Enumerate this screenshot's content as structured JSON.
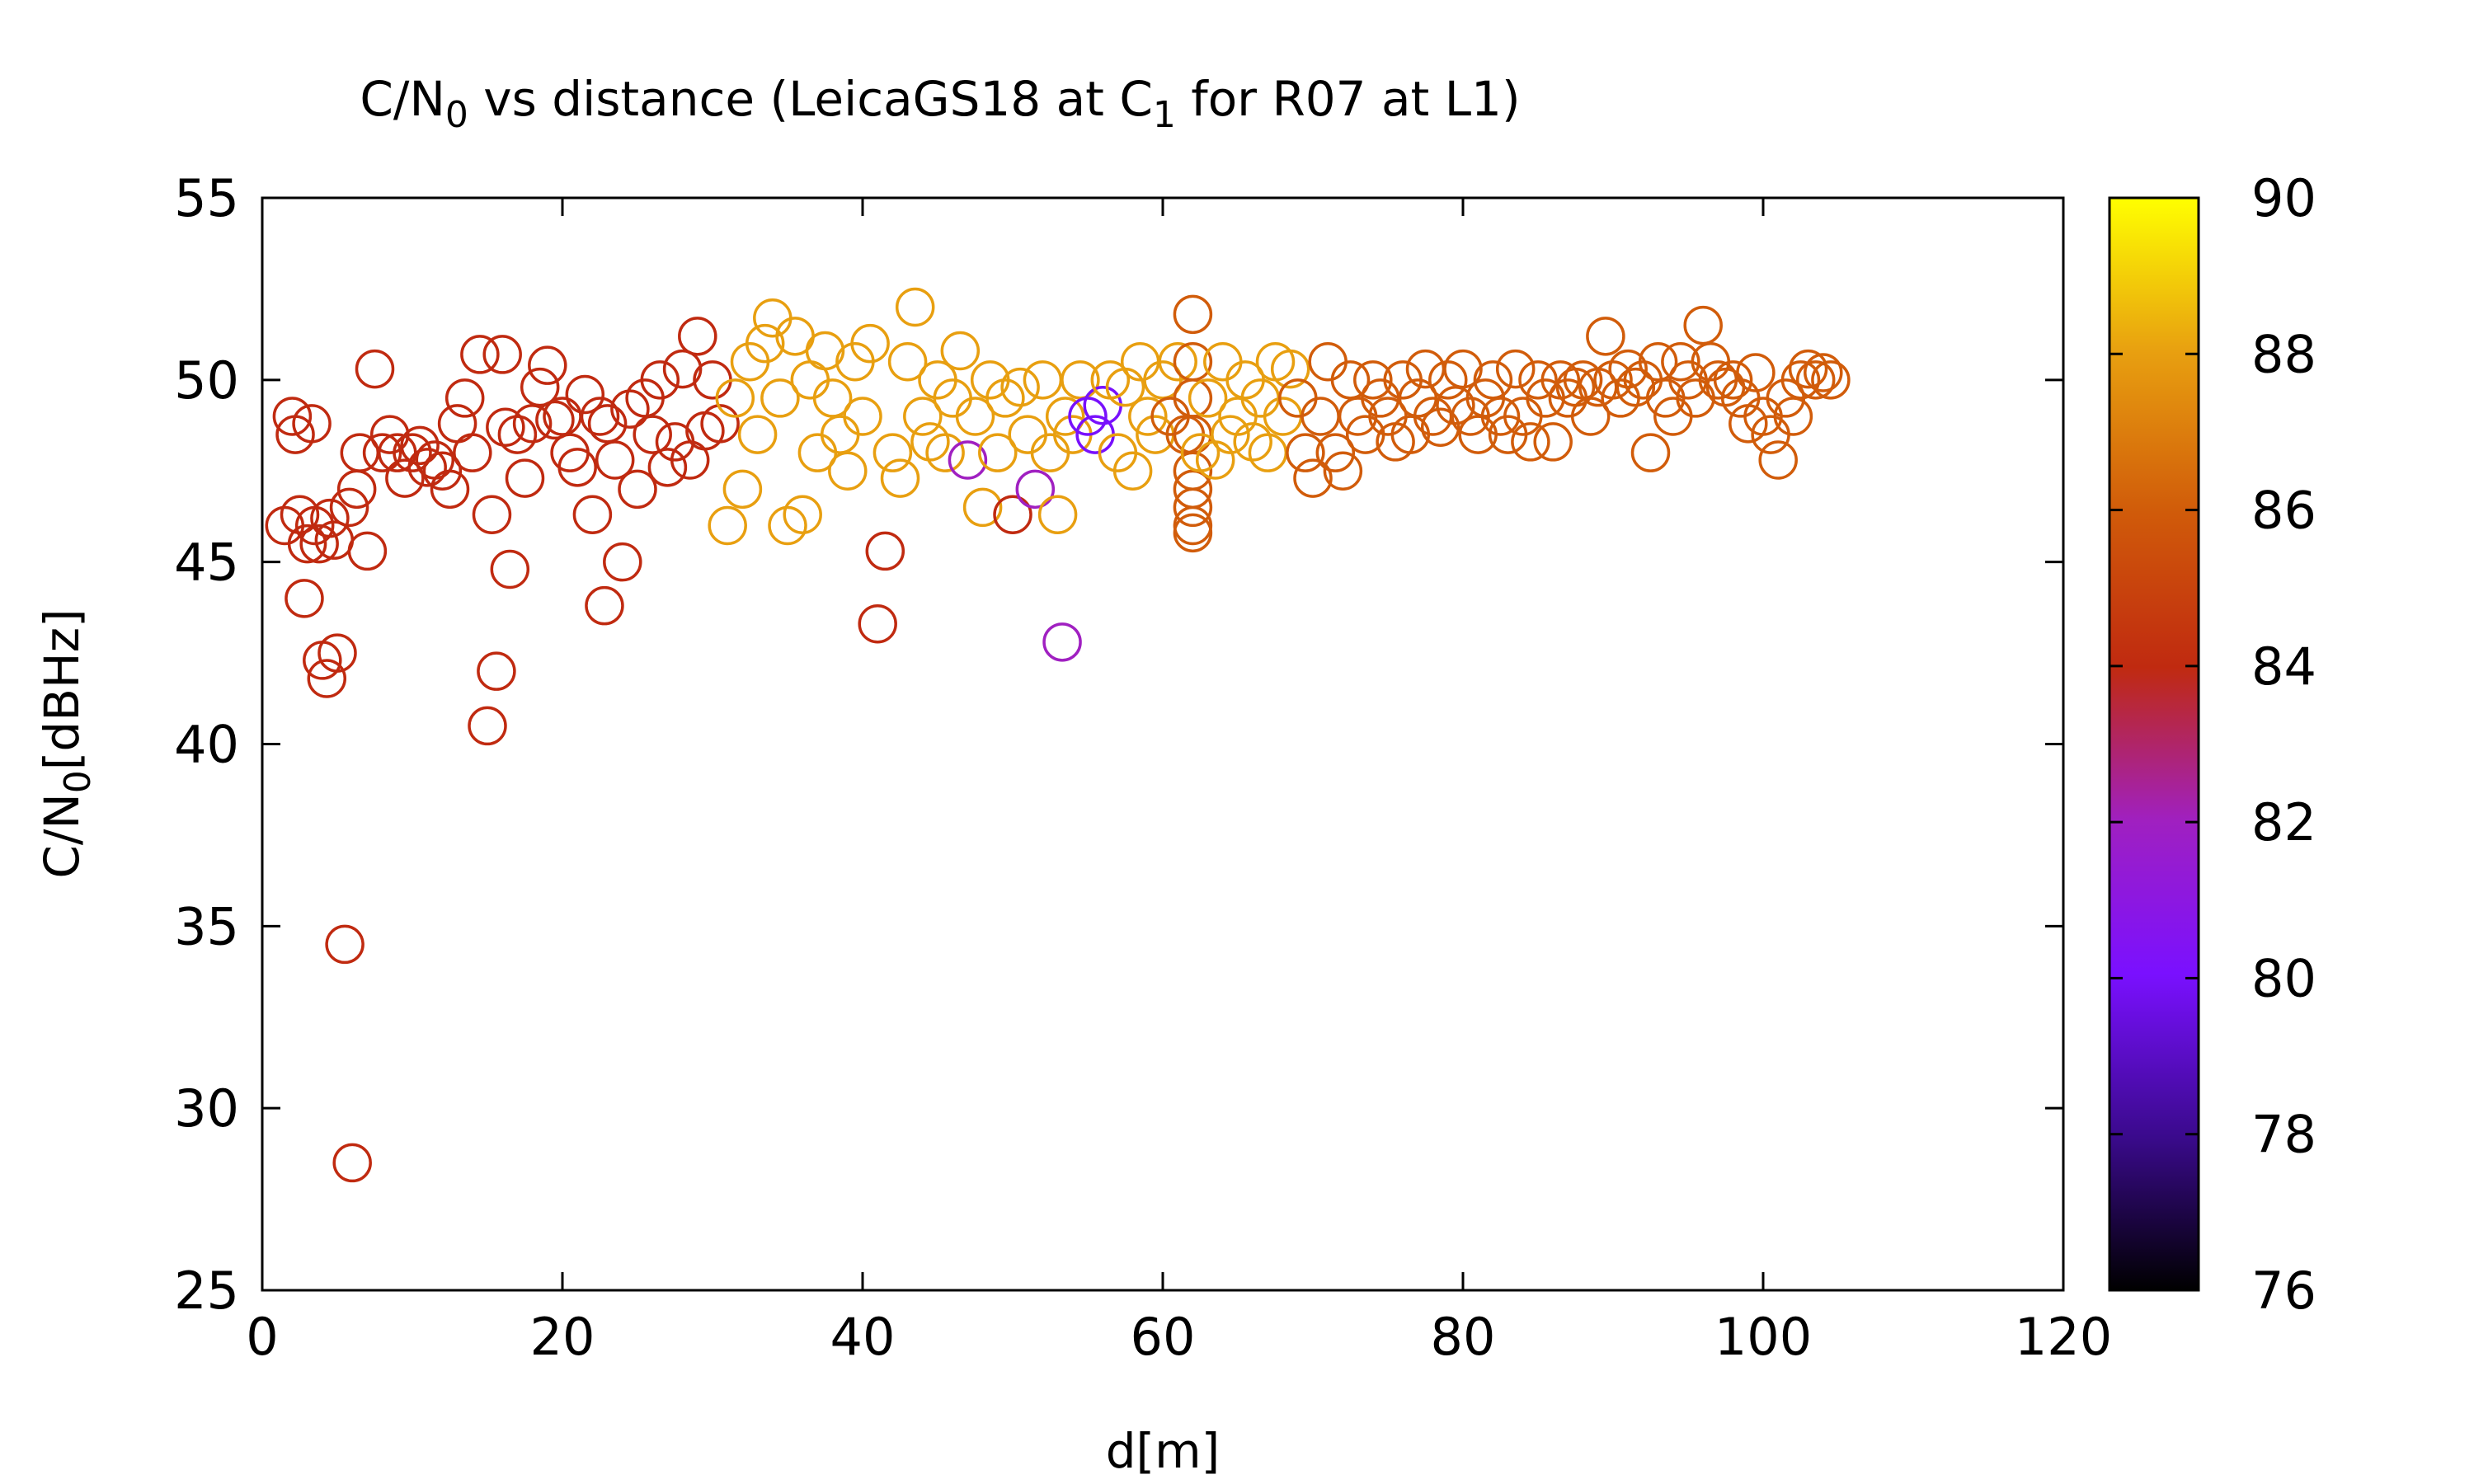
{
  "chart_data": {
    "type": "scatter",
    "title": {
      "main": "C/N",
      "sub0": "0",
      "mid": " vs distance (LeicaGS18 at C",
      "sub1": "1",
      "end": " for R07 at L1)"
    },
    "xlabel": "d[m]",
    "ylabel": {
      "main": "C/N",
      "sub": "0",
      "end": "[dBHz]"
    },
    "xlim": [
      0,
      120
    ],
    "ylim": [
      25,
      55
    ],
    "xticks": [
      "0",
      "20",
      "40",
      "60",
      "80",
      "100",
      "120"
    ],
    "yticks": [
      "25",
      "30",
      "35",
      "40",
      "45",
      "50",
      "55"
    ],
    "colorbar": {
      "range": [
        76,
        90
      ],
      "ticks": [
        "76",
        "78",
        "80",
        "82",
        "84",
        "86",
        "88",
        "90"
      ]
    },
    "points": [
      [
        1.5,
        46.0,
        84
      ],
      [
        2.0,
        49.0,
        84
      ],
      [
        2.2,
        48.5,
        84
      ],
      [
        2.5,
        46.3,
        84
      ],
      [
        2.8,
        44.0,
        84
      ],
      [
        3.0,
        45.5,
        84
      ],
      [
        3.3,
        48.8,
        84
      ],
      [
        3.5,
        46.0,
        84
      ],
      [
        3.8,
        45.5,
        84
      ],
      [
        4.0,
        42.3,
        84
      ],
      [
        4.3,
        41.8,
        84
      ],
      [
        4.5,
        46.2,
        84
      ],
      [
        4.8,
        45.6,
        84
      ],
      [
        5.0,
        42.5,
        84
      ],
      [
        5.5,
        34.5,
        84
      ],
      [
        5.8,
        46.5,
        84
      ],
      [
        6.0,
        28.5,
        84
      ],
      [
        6.3,
        47.0,
        84
      ],
      [
        6.5,
        48.0,
        84
      ],
      [
        7.0,
        45.3,
        84
      ],
      [
        7.5,
        50.3,
        84
      ],
      [
        8.0,
        48.0,
        84
      ],
      [
        8.5,
        48.5,
        84
      ],
      [
        9.0,
        48.0,
        84
      ],
      [
        9.5,
        47.3,
        84
      ],
      [
        10.0,
        48.0,
        84
      ],
      [
        10.5,
        48.2,
        84
      ],
      [
        11.0,
        47.6,
        84
      ],
      [
        11.5,
        47.8,
        84
      ],
      [
        12.0,
        47.5,
        84
      ],
      [
        12.5,
        47.0,
        84
      ],
      [
        13.0,
        48.8,
        84
      ],
      [
        13.5,
        49.5,
        84
      ],
      [
        14.0,
        48.0,
        84
      ],
      [
        14.5,
        50.7,
        84
      ],
      [
        15.0,
        40.5,
        84
      ],
      [
        15.3,
        46.3,
        84
      ],
      [
        15.6,
        42.0,
        84
      ],
      [
        16.0,
        50.7,
        84
      ],
      [
        16.2,
        48.7,
        84
      ],
      [
        16.5,
        44.8,
        84
      ],
      [
        17.0,
        48.5,
        84
      ],
      [
        17.5,
        47.3,
        84
      ],
      [
        18.0,
        48.8,
        84
      ],
      [
        18.5,
        49.8,
        84
      ],
      [
        19.0,
        50.4,
        84
      ],
      [
        19.5,
        48.9,
        84
      ],
      [
        20.0,
        49.0,
        84
      ],
      [
        20.5,
        48.0,
        84
      ],
      [
        21.0,
        47.6,
        84
      ],
      [
        21.5,
        49.6,
        84
      ],
      [
        22.0,
        46.3,
        84
      ],
      [
        22.5,
        49.0,
        84
      ],
      [
        22.8,
        43.8,
        84
      ],
      [
        23.0,
        48.8,
        84
      ],
      [
        23.5,
        47.8,
        84
      ],
      [
        24.0,
        45.0,
        84
      ],
      [
        24.5,
        49.2,
        84
      ],
      [
        25.0,
        47.0,
        84
      ],
      [
        25.5,
        49.5,
        84
      ],
      [
        26.0,
        48.5,
        84
      ],
      [
        26.5,
        50.0,
        84
      ],
      [
        27.0,
        47.6,
        84
      ],
      [
        27.5,
        48.3,
        84
      ],
      [
        28.0,
        50.3,
        84
      ],
      [
        28.5,
        47.8,
        84
      ],
      [
        29.0,
        51.2,
        84
      ],
      [
        29.5,
        48.6,
        84
      ],
      [
        30.0,
        50.0,
        84
      ],
      [
        30.5,
        48.8,
        84
      ],
      [
        31.0,
        46.0,
        88
      ],
      [
        31.5,
        49.5,
        88
      ],
      [
        32.0,
        47.0,
        88
      ],
      [
        32.5,
        50.5,
        88
      ],
      [
        33.0,
        48.5,
        88
      ],
      [
        33.5,
        51.0,
        88
      ],
      [
        34.0,
        51.7,
        88
      ],
      [
        34.5,
        49.5,
        88
      ],
      [
        35.0,
        46.0,
        88
      ],
      [
        35.5,
        51.2,
        88
      ],
      [
        36.0,
        46.3,
        88
      ],
      [
        36.5,
        50.0,
        88
      ],
      [
        37.0,
        48.0,
        88
      ],
      [
        37.5,
        50.8,
        88
      ],
      [
        38.0,
        49.5,
        88
      ],
      [
        38.5,
        48.5,
        88
      ],
      [
        39.0,
        47.5,
        88
      ],
      [
        39.5,
        50.5,
        88
      ],
      [
        40.0,
        49.0,
        88
      ],
      [
        40.5,
        51.0,
        88
      ],
      [
        41.0,
        43.3,
        84
      ],
      [
        41.5,
        45.3,
        84
      ],
      [
        42.0,
        48.0,
        88
      ],
      [
        42.5,
        47.3,
        88
      ],
      [
        43.0,
        50.5,
        88
      ],
      [
        43.5,
        52.0,
        88
      ],
      [
        44.0,
        49.0,
        88
      ],
      [
        44.5,
        48.3,
        88
      ],
      [
        45.0,
        50.0,
        88
      ],
      [
        45.5,
        48.0,
        88
      ],
      [
        46.0,
        49.5,
        88
      ],
      [
        46.5,
        50.8,
        88
      ],
      [
        47.0,
        47.8,
        82
      ],
      [
        47.5,
        49.0,
        88
      ],
      [
        48.0,
        46.5,
        88
      ],
      [
        48.5,
        50.0,
        88
      ],
      [
        49.0,
        48.0,
        88
      ],
      [
        49.5,
        49.5,
        88
      ],
      [
        50.0,
        46.3,
        84
      ],
      [
        50.5,
        49.8,
        88
      ],
      [
        51.0,
        48.5,
        88
      ],
      [
        51.5,
        47.0,
        82
      ],
      [
        52.0,
        50.0,
        88
      ],
      [
        52.5,
        48.0,
        88
      ],
      [
        53.0,
        46.3,
        88
      ],
      [
        53.3,
        42.8,
        82
      ],
      [
        53.5,
        49.0,
        88
      ],
      [
        54.0,
        48.5,
        88
      ],
      [
        54.5,
        50.0,
        88
      ],
      [
        55.0,
        49.0,
        80
      ],
      [
        55.5,
        48.5,
        80
      ],
      [
        56.0,
        49.3,
        80
      ],
      [
        56.5,
        50.0,
        88
      ],
      [
        57.0,
        48.0,
        88
      ],
      [
        57.5,
        49.8,
        88
      ],
      [
        58.0,
        47.5,
        88
      ],
      [
        58.5,
        50.5,
        88
      ],
      [
        59.0,
        49.0,
        88
      ],
      [
        59.5,
        48.5,
        88
      ],
      [
        60.0,
        50.0,
        88
      ],
      [
        60.5,
        49.0,
        86
      ],
      [
        61.0,
        50.5,
        88
      ],
      [
        61.5,
        48.5,
        86
      ],
      [
        62.0,
        51.8,
        86
      ],
      [
        62.0,
        50.5,
        86
      ],
      [
        62.0,
        49.5,
        86
      ],
      [
        62.0,
        48.5,
        86
      ],
      [
        62.0,
        47.5,
        86
      ],
      [
        62.0,
        47.0,
        86
      ],
      [
        62.0,
        46.5,
        86
      ],
      [
        62.0,
        46.0,
        86
      ],
      [
        62.0,
        45.8,
        86
      ],
      [
        62.5,
        48.0,
        88
      ],
      [
        63.0,
        49.5,
        88
      ],
      [
        63.5,
        47.8,
        88
      ],
      [
        64.0,
        50.5,
        88
      ],
      [
        64.5,
        48.5,
        88
      ],
      [
        65.0,
        49.0,
        88
      ],
      [
        65.5,
        50.0,
        88
      ],
      [
        66.0,
        48.3,
        88
      ],
      [
        66.5,
        49.5,
        88
      ],
      [
        67.0,
        48.0,
        88
      ],
      [
        67.5,
        50.5,
        88
      ],
      [
        68.0,
        49.0,
        88
      ],
      [
        68.5,
        50.3,
        88
      ],
      [
        69.0,
        49.5,
        86
      ],
      [
        69.5,
        48.0,
        86
      ],
      [
        70.0,
        47.3,
        86
      ],
      [
        70.5,
        49.0,
        86
      ],
      [
        71.0,
        50.5,
        86
      ],
      [
        71.5,
        48.0,
        86
      ],
      [
        72.0,
        47.5,
        86
      ],
      [
        72.5,
        50.0,
        86
      ],
      [
        73.0,
        49.0,
        86
      ],
      [
        73.5,
        48.5,
        86
      ],
      [
        74.0,
        50.0,
        86
      ],
      [
        74.5,
        49.5,
        86
      ],
      [
        75.0,
        49.0,
        86
      ],
      [
        75.5,
        48.3,
        86
      ],
      [
        76.0,
        50.0,
        86
      ],
      [
        76.5,
        48.5,
        86
      ],
      [
        77.0,
        49.5,
        86
      ],
      [
        77.5,
        50.3,
        86
      ],
      [
        78.0,
        49.0,
        86
      ],
      [
        78.5,
        48.7,
        86
      ],
      [
        79.0,
        50.0,
        86
      ],
      [
        79.5,
        49.3,
        86
      ],
      [
        80.0,
        50.3,
        86
      ],
      [
        80.5,
        49.0,
        86
      ],
      [
        81.0,
        48.5,
        86
      ],
      [
        81.5,
        49.5,
        86
      ],
      [
        82.0,
        50.0,
        86
      ],
      [
        82.5,
        49.0,
        86
      ],
      [
        83.0,
        48.5,
        86
      ],
      [
        83.5,
        50.3,
        86
      ],
      [
        84.0,
        49.0,
        86
      ],
      [
        84.5,
        48.3,
        86
      ],
      [
        85.0,
        50.0,
        86
      ],
      [
        85.5,
        49.5,
        86
      ],
      [
        86.0,
        48.3,
        86
      ],
      [
        86.5,
        50.0,
        86
      ],
      [
        87.0,
        49.5,
        86
      ],
      [
        87.5,
        49.8,
        86
      ],
      [
        88.0,
        50.0,
        86
      ],
      [
        88.5,
        49.0,
        86
      ],
      [
        89.0,
        49.8,
        86
      ],
      [
        89.5,
        51.2,
        86
      ],
      [
        90.0,
        50.0,
        86
      ],
      [
        90.5,
        49.5,
        86
      ],
      [
        91.0,
        50.3,
        86
      ],
      [
        91.5,
        49.8,
        86
      ],
      [
        92.0,
        50.0,
        86
      ],
      [
        92.5,
        48.0,
        86
      ],
      [
        93.0,
        50.5,
        86
      ],
      [
        93.5,
        49.5,
        86
      ],
      [
        94.0,
        49.0,
        86
      ],
      [
        94.5,
        50.5,
        86
      ],
      [
        95.0,
        50.0,
        86
      ],
      [
        95.5,
        49.5,
        86
      ],
      [
        96.0,
        51.5,
        86
      ],
      [
        96.5,
        50.5,
        86
      ],
      [
        97.0,
        50.0,
        86
      ],
      [
        97.5,
        49.8,
        86
      ],
      [
        98.0,
        50.0,
        86
      ],
      [
        98.5,
        49.5,
        86
      ],
      [
        99.0,
        48.8,
        86
      ],
      [
        99.5,
        50.2,
        86
      ],
      [
        100.0,
        49.0,
        86
      ],
      [
        100.5,
        48.5,
        86
      ],
      [
        101.0,
        47.8,
        86
      ],
      [
        101.5,
        49.5,
        86
      ],
      [
        102.0,
        49.0,
        86
      ],
      [
        102.5,
        50.0,
        86
      ],
      [
        103.0,
        50.3,
        86
      ],
      [
        103.5,
        50.0,
        86
      ],
      [
        104.0,
        50.2,
        86
      ],
      [
        104.5,
        50.0,
        86
      ]
    ]
  }
}
